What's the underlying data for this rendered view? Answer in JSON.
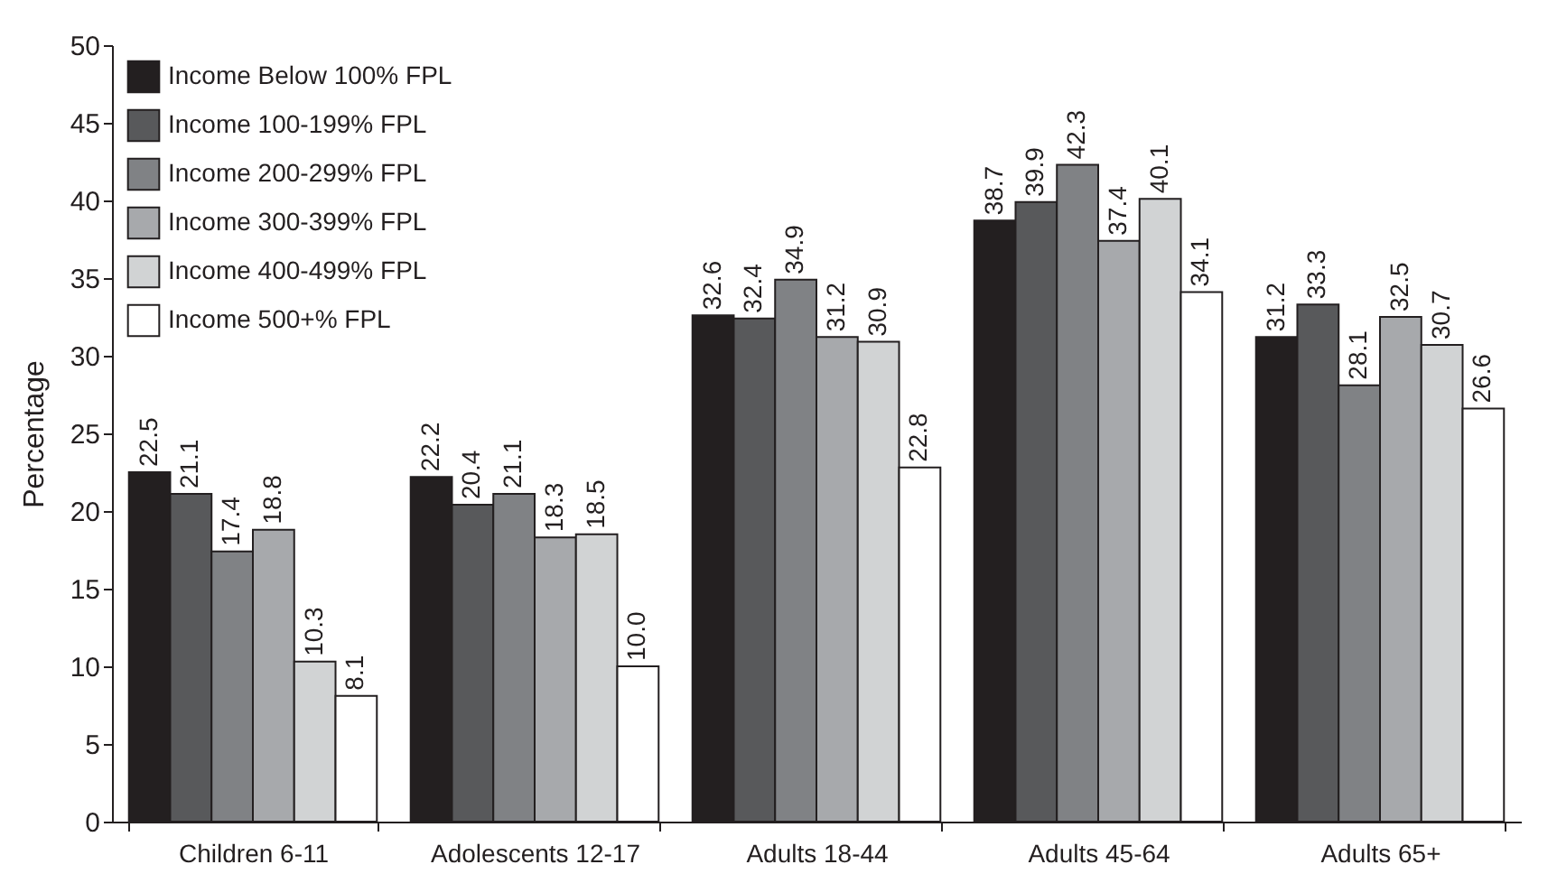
{
  "chart_data": {
    "type": "bar",
    "ylabel": "Percentage",
    "categories": [
      "Children 6-11",
      "Adolescents 12-17",
      "Adults 18-44",
      "Adults 45-64",
      "Adults 65+"
    ],
    "series": [
      {
        "name": "Income Below 100% FPL",
        "color": "#231f20",
        "values": [
          22.5,
          22.2,
          32.6,
          38.7,
          31.2
        ],
        "value_labels": [
          "22.5",
          "22.2",
          "32.6",
          "38.7",
          "31.2"
        ]
      },
      {
        "name": "Income 100-199% FPL",
        "color": "#58595b",
        "values": [
          21.1,
          20.4,
          32.4,
          39.9,
          33.3
        ],
        "value_labels": [
          "21.1",
          "20.4",
          "32.4",
          "39.9",
          "33.3"
        ]
      },
      {
        "name": "Income 200-299% FPL",
        "color": "#808285",
        "values": [
          17.4,
          21.1,
          34.9,
          42.3,
          28.1
        ],
        "value_labels": [
          "17.4",
          "21.1",
          "34.9",
          "42.3",
          "28.1"
        ]
      },
      {
        "name": "Income 300-399% FPL",
        "color": "#a7a9ac",
        "values": [
          18.8,
          18.3,
          31.2,
          37.4,
          32.5
        ],
        "value_labels": [
          "18.8",
          "18.3",
          "31.2",
          "37.4",
          "32.5"
        ]
      },
      {
        "name": "Income 400-499% FPL",
        "color": "#d1d3d4",
        "values": [
          10.3,
          18.5,
          30.9,
          40.1,
          30.7
        ],
        "value_labels": [
          "10.3",
          "18.5",
          "30.9",
          "40.1",
          "30.7"
        ]
      },
      {
        "name": "Income 500+% FPL",
        "color": "#ffffff",
        "values": [
          8.1,
          10.0,
          22.8,
          34.1,
          26.6
        ],
        "value_labels": [
          "8.1",
          "10.0",
          "22.8",
          "34.1",
          "26.6"
        ]
      }
    ],
    "ylim": [
      0,
      50
    ],
    "yticks": [
      0,
      5,
      10,
      15,
      20,
      25,
      30,
      35,
      40,
      45,
      50
    ],
    "grid": false,
    "legend": "top left"
  }
}
